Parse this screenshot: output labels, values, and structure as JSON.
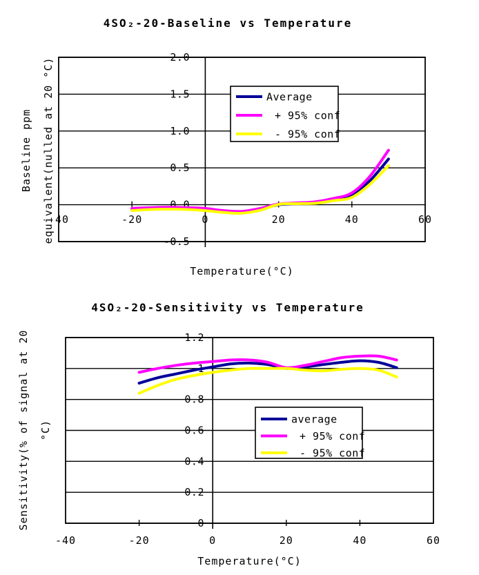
{
  "chart_data": [
    {
      "type": "line",
      "title": "4SO₂-20-Baseline vs Temperature",
      "xlabel": "Temperature(°C)",
      "ylabel_lines": [
        "Baseline ppm",
        "equivalent(nulled at 20 °C)"
      ],
      "xlim": [
        -40,
        60
      ],
      "ylim": [
        -0.5,
        2.0
      ],
      "x_ticks": [
        -40,
        -20,
        0,
        20,
        40,
        60
      ],
      "x_tick_labels": [
        "-40",
        "-20",
        "0",
        "20",
        "40",
        "60"
      ],
      "y_ticks": [
        2.0,
        1.5,
        1.0,
        0.5,
        0.0,
        -0.5
      ],
      "y_tick_labels": [
        "2.0",
        "1.5",
        "1.0",
        "0.5",
        "0.0",
        "-0.5"
      ],
      "grid": "horizontal",
      "legend_position": "upper-middle",
      "x": [
        -20,
        -15,
        -10,
        -5,
        0,
        5,
        10,
        15,
        20,
        25,
        30,
        35,
        40,
        45,
        50
      ],
      "series": [
        {
          "name": "Average",
          "color": "#000099",
          "values": [
            -0.06,
            -0.05,
            -0.045,
            -0.05,
            -0.065,
            -0.09,
            -0.1,
            -0.06,
            0.0,
            0.015,
            0.03,
            0.07,
            0.13,
            0.33,
            0.62
          ]
        },
        {
          "name": "+ 95% conf",
          "color": "#ff00ff",
          "values": [
            -0.05,
            -0.04,
            -0.035,
            -0.04,
            -0.05,
            -0.08,
            -0.09,
            -0.05,
            0.01,
            0.025,
            0.04,
            0.085,
            0.16,
            0.39,
            0.74
          ]
        },
        {
          "name": "- 95% conf",
          "color": "#ffff00",
          "values": [
            -0.08,
            -0.065,
            -0.06,
            -0.065,
            -0.08,
            -0.105,
            -0.115,
            -0.075,
            0.005,
            0.015,
            0.02,
            0.055,
            0.1,
            0.28,
            0.53
          ]
        }
      ]
    },
    {
      "type": "line",
      "title": "4SO₂-20-Sensitivity vs Temperature",
      "xlabel": "Temperature(°C)",
      "ylabel_lines": [
        "Sensitivity(% of signal at 20",
        "°C)"
      ],
      "xlim": [
        -40,
        60
      ],
      "ylim": [
        0,
        1.2
      ],
      "x_ticks": [
        -40,
        -20,
        0,
        20,
        40,
        60
      ],
      "x_tick_labels": [
        "-40",
        "-20",
        "0",
        "20",
        "40",
        "60"
      ],
      "y_ticks": [
        1.2,
        1.0,
        0.8,
        0.6,
        0.4,
        0.2,
        0.0
      ],
      "y_tick_labels": [
        "1.2",
        "1",
        "0.8",
        "0.6",
        "0.4",
        "0.2",
        "0"
      ],
      "grid": "horizontal",
      "legend_position": "middle-right",
      "x": [
        -20,
        -15,
        -10,
        -5,
        0,
        5,
        10,
        15,
        20,
        25,
        30,
        35,
        40,
        45,
        50
      ],
      "series": [
        {
          "name": "average",
          "color": "#000099",
          "values": [
            0.905,
            0.94,
            0.965,
            0.99,
            1.01,
            1.03,
            1.035,
            1.025,
            1.0,
            1.01,
            1.025,
            1.04,
            1.05,
            1.04,
            1.005
          ]
        },
        {
          "name": "+ 95% conf",
          "color": "#ff00ff",
          "values": [
            0.975,
            1.0,
            1.02,
            1.035,
            1.045,
            1.055,
            1.055,
            1.04,
            1.005,
            1.02,
            1.045,
            1.07,
            1.08,
            1.08,
            1.055
          ]
        },
        {
          "name": "- 95% conf",
          "color": "#ffff00",
          "values": [
            0.84,
            0.89,
            0.93,
            0.955,
            0.975,
            0.99,
            1.0,
            1.0,
            1.0,
            0.99,
            0.985,
            0.995,
            1.0,
            0.99,
            0.945
          ]
        }
      ]
    }
  ]
}
